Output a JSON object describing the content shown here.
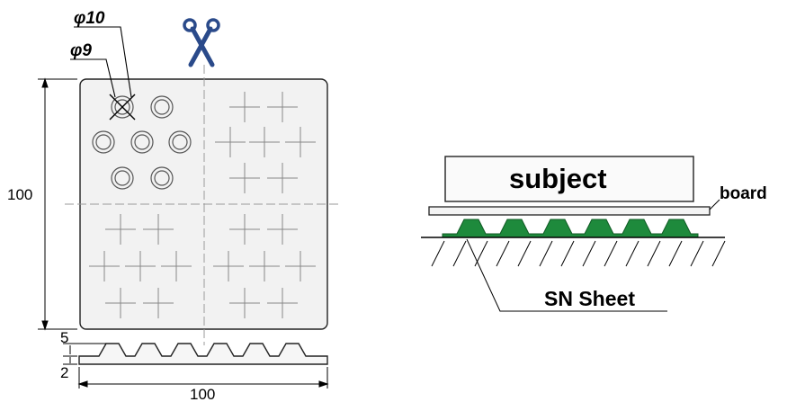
{
  "sheet_view": {
    "dim_phi_outer": "φ10",
    "dim_phi_inner": "φ9",
    "dim_height": "100",
    "dim_width": "100",
    "dim_profile_height": "5",
    "dim_base_thickness": "2",
    "cut_icon": "scissors-icon"
  },
  "section_view": {
    "subject_label": "subject",
    "board_label": "board",
    "sheet_label": "SN Sheet",
    "colors": {
      "sheet": "#1e8a3c",
      "board": "#f4f4f4",
      "panel": "#f2f2f2",
      "scissors": "#2a4a8a"
    }
  }
}
